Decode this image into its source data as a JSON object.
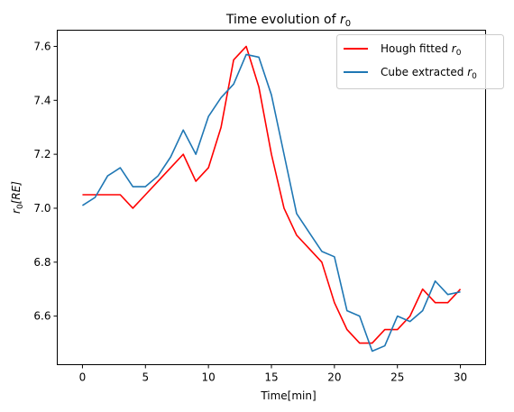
{
  "chart_data": {
    "type": "line",
    "title": "Time evolution of ",
    "title_math": "r",
    "title_sub": "0",
    "xlabel": "Time[min]",
    "ylabel_math": "r",
    "ylabel_sub": "0",
    "ylabel_rest": "[RE]",
    "xlim": [
      -2,
      32
    ],
    "ylim": [
      6.42,
      7.66
    ],
    "xticks": [
      0,
      5,
      10,
      15,
      20,
      25,
      30
    ],
    "yticks": [
      6.6,
      6.8,
      7.0,
      7.2,
      7.4,
      7.6
    ],
    "ytick_labels": [
      "6.6",
      "6.8",
      "7.0",
      "7.2",
      "7.4",
      "7.6"
    ],
    "grid": false,
    "legend_position": "top-right",
    "series": [
      {
        "name": "Hough fitted ",
        "name_math": "r",
        "name_sub": "0",
        "color": "#ff0000",
        "x": [
          0,
          1,
          2,
          3,
          4,
          5,
          6,
          7,
          8,
          9,
          10,
          11,
          12,
          13,
          14,
          15,
          16,
          17,
          18,
          19,
          20,
          21,
          22,
          23,
          24,
          25,
          26,
          27,
          28,
          29,
          30
        ],
        "values": [
          7.05,
          7.05,
          7.05,
          7.05,
          7.0,
          7.05,
          7.1,
          7.15,
          7.2,
          7.1,
          7.15,
          7.3,
          7.55,
          7.6,
          7.45,
          7.2,
          7.0,
          6.9,
          6.85,
          6.8,
          6.65,
          6.55,
          6.5,
          6.5,
          6.55,
          6.55,
          6.6,
          6.7,
          6.65,
          6.65,
          6.7
        ]
      },
      {
        "name": "Cube extracted ",
        "name_math": "r",
        "name_sub": "0",
        "color": "#1f77b4",
        "x": [
          0,
          1,
          2,
          3,
          4,
          5,
          6,
          7,
          8,
          9,
          10,
          11,
          12,
          13,
          14,
          15,
          16,
          17,
          18,
          19,
          20,
          21,
          22,
          23,
          24,
          25,
          26,
          27,
          28,
          29,
          30
        ],
        "values": [
          7.01,
          7.04,
          7.12,
          7.15,
          7.08,
          7.08,
          7.12,
          7.19,
          7.29,
          7.2,
          7.34,
          7.41,
          7.46,
          7.57,
          7.56,
          7.42,
          7.2,
          6.98,
          6.91,
          6.84,
          6.82,
          6.62,
          6.6,
          6.47,
          6.49,
          6.6,
          6.58,
          6.62,
          6.73,
          6.68,
          6.69
        ]
      }
    ]
  }
}
